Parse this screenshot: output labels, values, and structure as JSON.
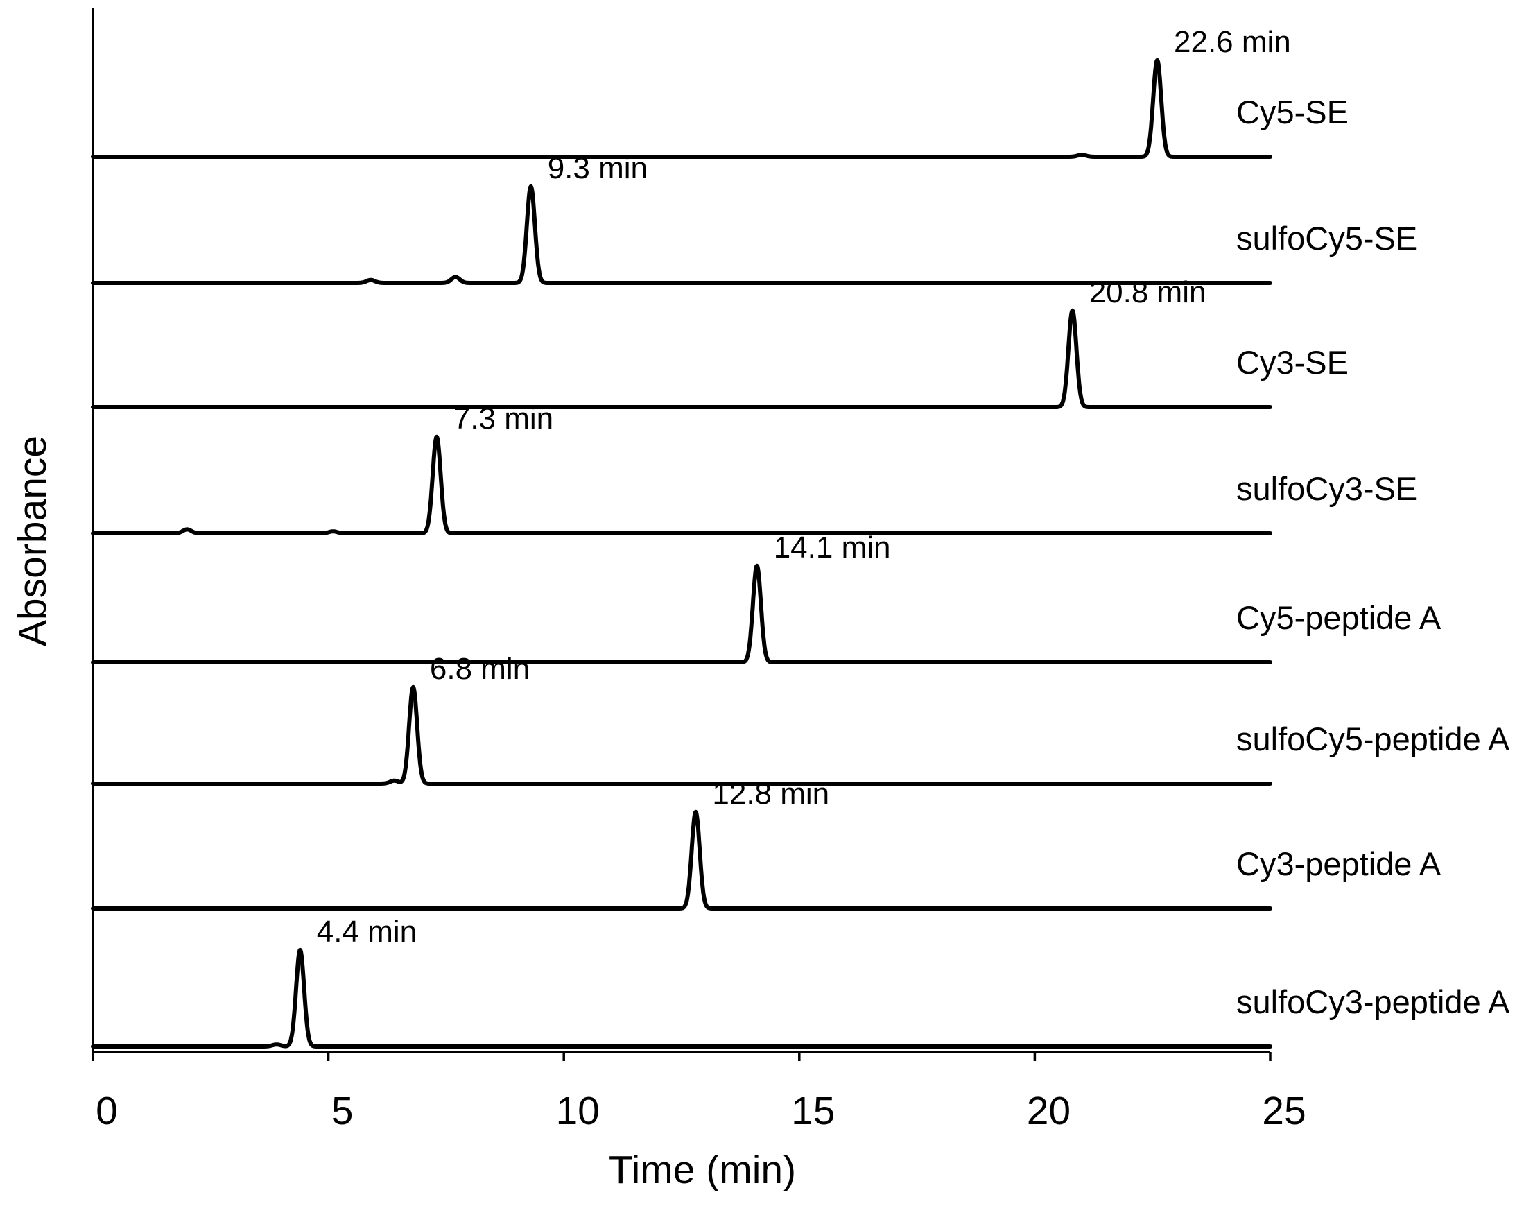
{
  "chart_data": {
    "type": "line",
    "subtype": "stacked-chromatogram",
    "title": "",
    "xlabel": "Time (min)",
    "ylabel": "Absorbance",
    "xlim": [
      0,
      25
    ],
    "xticks": [
      0,
      5,
      10,
      15,
      20,
      25
    ],
    "xtick_labels": [
      "0",
      "5",
      "10",
      "15",
      "20",
      "25"
    ],
    "grid": false,
    "legend": "none",
    "series": [
      {
        "name": "Cy5-SE",
        "peak_time": 22.6,
        "peak_label": "22.6 min",
        "relative_height": 0.98,
        "minor_peaks": [
          {
            "time": 21.0,
            "height": 0.02
          }
        ]
      },
      {
        "name": "sulfoCy5-SE",
        "peak_time": 9.3,
        "peak_label": "9.3 min",
        "relative_height": 0.98,
        "minor_peaks": [
          {
            "time": 5.9,
            "height": 0.03
          },
          {
            "time": 7.7,
            "height": 0.06
          }
        ]
      },
      {
        "name": "Cy3-SE",
        "peak_time": 20.8,
        "peak_label": "20.8 min",
        "relative_height": 0.98,
        "minor_peaks": []
      },
      {
        "name": "sulfoCy3-SE",
        "peak_time": 7.3,
        "peak_label": "7.3 min",
        "relative_height": 0.98,
        "minor_peaks": [
          {
            "time": 2.0,
            "height": 0.04
          },
          {
            "time": 5.1,
            "height": 0.02
          }
        ]
      },
      {
        "name": "Cy5-peptide A",
        "peak_time": 14.1,
        "peak_label": "14.1 min",
        "relative_height": 0.98,
        "minor_peaks": []
      },
      {
        "name": "sulfoCy5-peptide A",
        "peak_time": 6.8,
        "peak_label": "6.8 min",
        "relative_height": 0.98,
        "minor_peaks": [
          {
            "time": 6.4,
            "height": 0.03
          }
        ]
      },
      {
        "name": "Cy3-peptide A",
        "peak_time": 12.8,
        "peak_label": "12.8 min",
        "relative_height": 0.98,
        "minor_peaks": []
      },
      {
        "name": "sulfoCy3-peptide A",
        "peak_time": 4.4,
        "peak_label": "4.4 min",
        "relative_height": 0.98,
        "minor_peaks": [
          {
            "time": 3.9,
            "height": 0.02
          }
        ]
      }
    ]
  }
}
